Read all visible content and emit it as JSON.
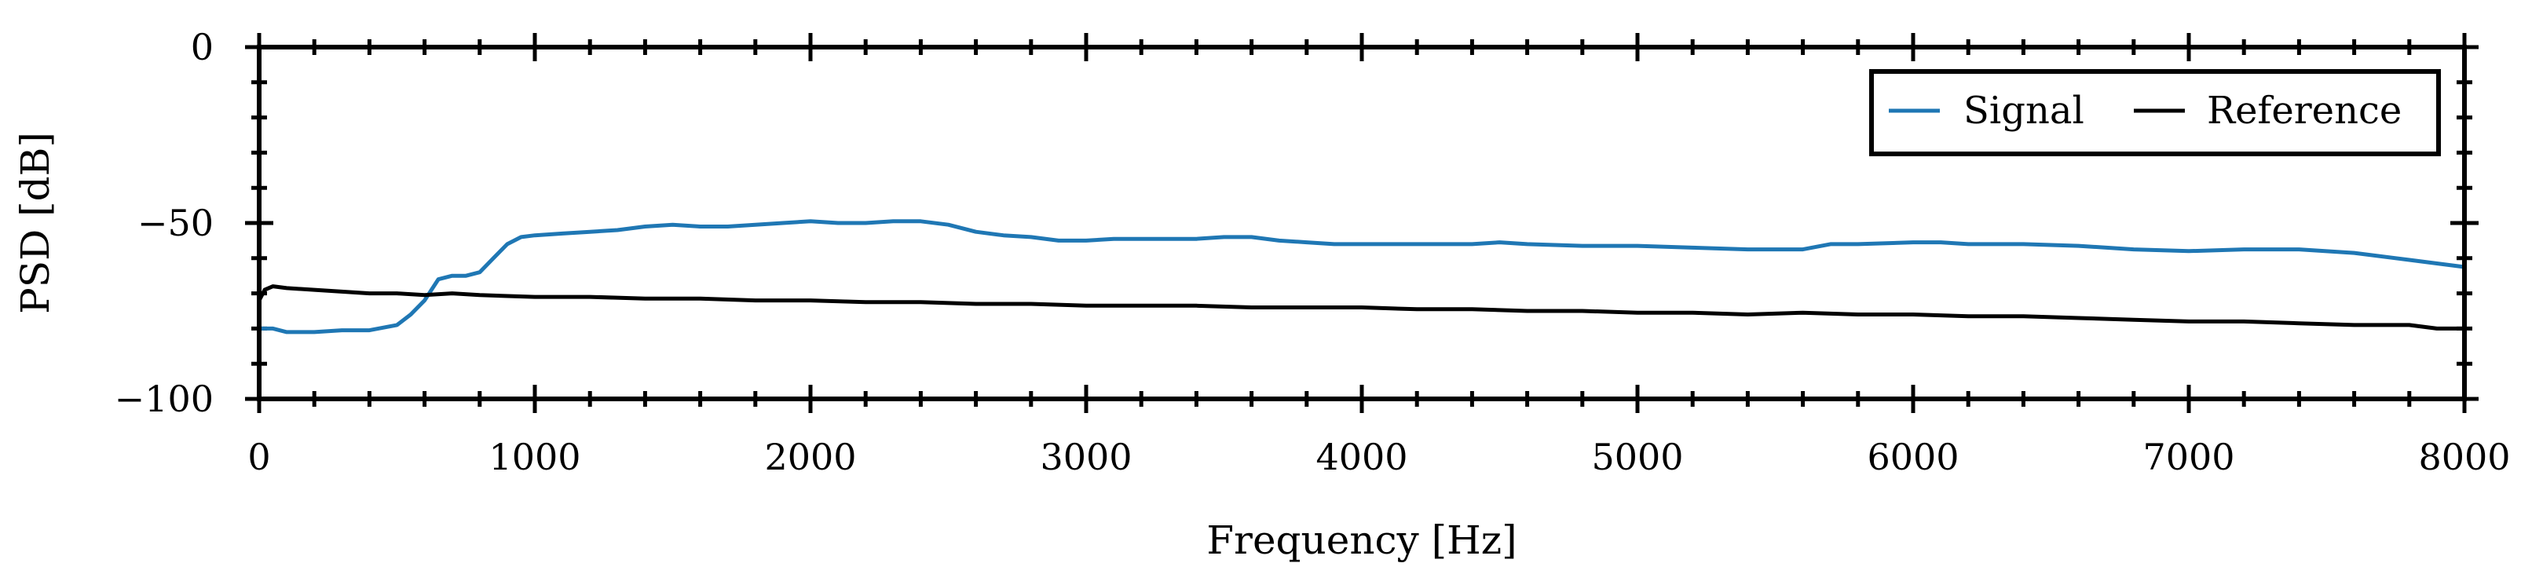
{
  "chart_data": {
    "type": "line",
    "xlabel": "Frequency [Hz]",
    "ylabel": "PSD [dB]",
    "xlim": [
      0,
      8000
    ],
    "ylim": [
      -100,
      0
    ],
    "x_ticks": [
      0,
      1000,
      2000,
      3000,
      4000,
      5000,
      6000,
      7000,
      8000
    ],
    "x_tick_labels": [
      "0",
      "1000",
      "2000",
      "3000",
      "4000",
      "5000",
      "6000",
      "7000",
      "8000"
    ],
    "y_ticks": [
      0,
      -50,
      -100
    ],
    "y_tick_labels": [
      "0",
      "−50",
      "−100"
    ],
    "grid": false,
    "legend_position": "top-right",
    "series": [
      {
        "name": "Signal",
        "color": "#1f77b4",
        "x": [
          0,
          50,
          100,
          200,
          300,
          400,
          500,
          550,
          600,
          650,
          700,
          750,
          800,
          850,
          900,
          950,
          1000,
          1100,
          1200,
          1300,
          1400,
          1500,
          1600,
          1700,
          1800,
          1900,
          2000,
          2100,
          2200,
          2300,
          2400,
          2500,
          2600,
          2700,
          2800,
          2900,
          3000,
          3100,
          3200,
          3300,
          3400,
          3500,
          3600,
          3700,
          3800,
          3900,
          4000,
          4200,
          4400,
          4500,
          4600,
          4800,
          5000,
          5200,
          5400,
          5600,
          5700,
          5800,
          6000,
          6100,
          6200,
          6400,
          6600,
          6800,
          7000,
          7200,
          7400,
          7600,
          7800,
          8000
        ],
        "values": [
          -80,
          -80,
          -81,
          -81,
          -80.5,
          -80.5,
          -79,
          -76,
          -72,
          -66,
          -65,
          -65,
          -64,
          -60,
          -56,
          -54,
          -53.5,
          -53,
          -52.5,
          -52,
          -51,
          -50.5,
          -51,
          -51,
          -50.5,
          -50,
          -49.5,
          -50,
          -50,
          -49.5,
          -49.5,
          -50.5,
          -52.5,
          -53.5,
          -54,
          -55,
          -55,
          -54.5,
          -54.5,
          -54.5,
          -54.5,
          -54,
          -54,
          -55,
          -55.5,
          -56,
          -56,
          -56,
          -56,
          -55.5,
          -56,
          -56.5,
          -56.5,
          -57,
          -57.5,
          -57.5,
          -56,
          -56,
          -55.5,
          -55.5,
          -56,
          -56,
          -56.5,
          -57.5,
          -58,
          -57.5,
          -57.5,
          -58.5,
          -60.5,
          -62.5
        ]
      },
      {
        "name": "Reference",
        "color": "#000000",
        "x": [
          0,
          20,
          50,
          100,
          200,
          300,
          400,
          500,
          600,
          700,
          800,
          1000,
          1200,
          1400,
          1600,
          1800,
          2000,
          2200,
          2400,
          2600,
          2800,
          3000,
          3200,
          3400,
          3600,
          3800,
          4000,
          4200,
          4400,
          4600,
          4800,
          5000,
          5200,
          5400,
          5600,
          5800,
          6000,
          6200,
          6400,
          6600,
          6800,
          7000,
          7200,
          7400,
          7600,
          7800,
          7900,
          8000
        ],
        "values": [
          -72,
          -69,
          -68,
          -68.5,
          -69,
          -69.5,
          -70,
          -70,
          -70.5,
          -70,
          -70.5,
          -71,
          -71,
          -71.5,
          -71.5,
          -72,
          -72,
          -72.5,
          -72.5,
          -73,
          -73,
          -73.5,
          -73.5,
          -73.5,
          -74,
          -74,
          -74,
          -74.5,
          -74.5,
          -75,
          -75,
          -75.5,
          -75.5,
          -76,
          -75.5,
          -76,
          -76,
          -76.5,
          -76.5,
          -77,
          -77.5,
          -78,
          -78,
          -78.5,
          -79,
          -79,
          -80,
          -80
        ]
      }
    ]
  }
}
